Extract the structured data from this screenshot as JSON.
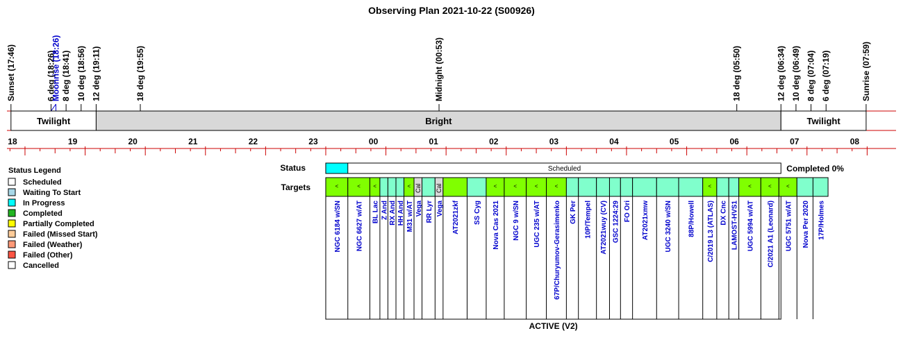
{
  "chart_data": {
    "type": "timeline",
    "title": "Observing Plan 2021-10-22 (S00926)",
    "time_axis": {
      "start_hour": 17.7,
      "end_hour": 32.1,
      "tick_labels": [
        "18",
        "19",
        "20",
        "21",
        "22",
        "23",
        "00",
        "01",
        "02",
        "03",
        "04",
        "05",
        "06",
        "07",
        "08"
      ]
    },
    "events": [
      {
        "label": "Sunset (17:46)",
        "hour": 17.767,
        "color": "#000000"
      },
      {
        "label": "6 deg (18:26)",
        "hour": 18.433,
        "color": "#000000"
      },
      {
        "label": "Moonrise (18:26)",
        "hour": 18.433,
        "color": "#0000cc"
      },
      {
        "label": "8 deg (18:41)",
        "hour": 18.683,
        "color": "#000000"
      },
      {
        "label": "10 deg (18:56)",
        "hour": 18.933,
        "color": "#000000"
      },
      {
        "label": "12 deg (19:11)",
        "hour": 19.183,
        "color": "#000000"
      },
      {
        "label": "18 deg (19:55)",
        "hour": 19.917,
        "color": "#000000"
      },
      {
        "label": "Midnight (00:53)",
        "hour": 24.883,
        "color": "#000000"
      },
      {
        "label": "18 deg (05:50)",
        "hour": 29.833,
        "color": "#000000"
      },
      {
        "label": "12 deg (06:34)",
        "hour": 30.567,
        "color": "#000000"
      },
      {
        "label": "10 deg (06:49)",
        "hour": 30.817,
        "color": "#000000"
      },
      {
        "label": "8 deg (07:04)",
        "hour": 31.067,
        "color": "#000000"
      },
      {
        "label": "6 deg (07:19)",
        "hour": 31.317,
        "color": "#000000"
      },
      {
        "label": "Sunrise (07:59)",
        "hour": 31.983,
        "color": "#000000"
      }
    ],
    "sky_periods": [
      {
        "label": "Twilight",
        "start": 17.767,
        "end": 19.183,
        "color": "#ffffff"
      },
      {
        "label": "Bright",
        "start": 19.183,
        "end": 30.567,
        "color": "#d8d8d8"
      },
      {
        "label": "Twilight",
        "start": 30.567,
        "end": 31.983,
        "color": "#ffffff"
      }
    ],
    "status_row": {
      "label": "Status",
      "start": 23.0,
      "end": 30.567,
      "in_progress_end": 23.367,
      "text": "Scheduled",
      "completed_text": "Completed 0%"
    },
    "targets_label": "Targets",
    "plan_label": "ACTIVE (V2)",
    "targets": [
      {
        "name": "NGC 6184 w/SN",
        "start": 23.0,
        "end": 23.367,
        "color": "#80ff00",
        "mark": "<"
      },
      {
        "name": "NGC 6627 w/AT",
        "start": 23.367,
        "end": 23.733,
        "color": "#80ff00",
        "mark": "<"
      },
      {
        "name": "BL Lac",
        "start": 23.733,
        "end": 23.9,
        "color": "#80ff00",
        "mark": "<"
      },
      {
        "name": "Z And",
        "start": 23.9,
        "end": 24.033,
        "color": "#80ffcc",
        "mark": ""
      },
      {
        "name": "RX And",
        "start": 24.033,
        "end": 24.167,
        "color": "#80ffcc",
        "mark": ""
      },
      {
        "name": "HH And",
        "start": 24.167,
        "end": 24.3,
        "color": "#80ffcc",
        "mark": ""
      },
      {
        "name": "M31 w/AT",
        "start": 24.3,
        "end": 24.467,
        "color": "#80ff00",
        "mark": "<"
      },
      {
        "name": "Vega",
        "start": 24.467,
        "end": 24.6,
        "color": "#d8d8d8",
        "mark": "Cal"
      },
      {
        "name": "RR Lyr",
        "start": 24.6,
        "end": 24.817,
        "color": "#80ffcc",
        "mark": ""
      },
      {
        "name": "Vega",
        "start": 24.817,
        "end": 24.95,
        "color": "#d8d8d8",
        "mark": "Cal"
      },
      {
        "name": "AT2021zkf",
        "start": 24.95,
        "end": 25.35,
        "color": "#80ff00",
        "mark": ""
      },
      {
        "name": "SS Cyg",
        "start": 25.35,
        "end": 25.667,
        "color": "#80ffcc",
        "mark": ""
      },
      {
        "name": "Nova Cas 2021",
        "start": 25.667,
        "end": 25.967,
        "color": "#80ff00",
        "mark": "<"
      },
      {
        "name": "NGC 9 w/SN",
        "start": 25.967,
        "end": 26.333,
        "color": "#80ff00",
        "mark": "<"
      },
      {
        "name": "UGC 235 w/AT",
        "start": 26.333,
        "end": 26.667,
        "color": "#80ff00",
        "mark": "<"
      },
      {
        "name": "67P/Churyumov-Gerasimenko",
        "start": 26.667,
        "end": 27.0,
        "color": "#80ff00",
        "mark": "<"
      },
      {
        "name": "GK Per",
        "start": 27.0,
        "end": 27.2,
        "color": "#80ffcc",
        "mark": ""
      },
      {
        "name": "10P/Tempel",
        "start": 27.2,
        "end": 27.5,
        "color": "#80ffcc",
        "mark": ""
      },
      {
        "name": "AT2021wuy (CV)",
        "start": 27.5,
        "end": 27.717,
        "color": "#80ffcc",
        "mark": ""
      },
      {
        "name": "GSC 1224:29",
        "start": 27.717,
        "end": 27.9,
        "color": "#80ffcc",
        "mark": ""
      },
      {
        "name": "FO Ori",
        "start": 27.9,
        "end": 28.1,
        "color": "#80ffcc",
        "mark": ""
      },
      {
        "name": "AT2021xmw",
        "start": 28.1,
        "end": 28.5,
        "color": "#80ffcc",
        "mark": ""
      },
      {
        "name": "UGC 3240 w/SN",
        "start": 28.5,
        "end": 28.867,
        "color": "#80ffcc",
        "mark": ""
      },
      {
        "name": "88P/Howell",
        "start": 28.867,
        "end": 29.267,
        "color": "#80ffcc",
        "mark": ""
      },
      {
        "name": "C/2019 L3 (ATLAS)",
        "start": 29.267,
        "end": 29.5,
        "color": "#80ff00",
        "mark": "<"
      },
      {
        "name": "DX Cnc",
        "start": 29.5,
        "end": 29.7,
        "color": "#80ffcc",
        "mark": ""
      },
      {
        "name": "LAMOST-HVS1",
        "start": 29.7,
        "end": 29.867,
        "color": "#80ffcc",
        "mark": ""
      },
      {
        "name": "UGC 5994 w/AT",
        "start": 29.867,
        "end": 30.233,
        "color": "#80ff00",
        "mark": "<"
      },
      {
        "name": "C/2021 A1 (Leonard)",
        "start": 30.233,
        "end": 30.533,
        "color": "#80ff00",
        "mark": "<"
      },
      {
        "name": "UGC 5751 w/AT",
        "start": 30.533,
        "end": 30.833,
        "color": "#80ff00",
        "mark": "<"
      },
      {
        "name": "Nova Per 2020",
        "start": 30.833,
        "end": 31.1,
        "color": "#80ffcc",
        "mark": ""
      },
      {
        "name": "17P/Holmes",
        "start": 31.1,
        "end": 31.35,
        "color": "#80ffcc",
        "mark": ""
      }
    ]
  },
  "legend": {
    "title": "Status Legend",
    "items": [
      {
        "label": "Scheduled",
        "color": "#ffffff"
      },
      {
        "label": "Waiting To Start",
        "color": "#a8d8e8"
      },
      {
        "label": "In Progress",
        "color": "#00ffff"
      },
      {
        "label": "Completed",
        "color": "#22b522"
      },
      {
        "label": "Partially Completed",
        "color": "#ffff00"
      },
      {
        "label": "Failed (Missed Start)",
        "color": "#ffcc99"
      },
      {
        "label": "Failed (Weather)",
        "color": "#ff9977"
      },
      {
        "label": "Failed (Other)",
        "color": "#ff5544"
      },
      {
        "label": "Cancelled",
        "color": "#ffffff"
      }
    ]
  }
}
